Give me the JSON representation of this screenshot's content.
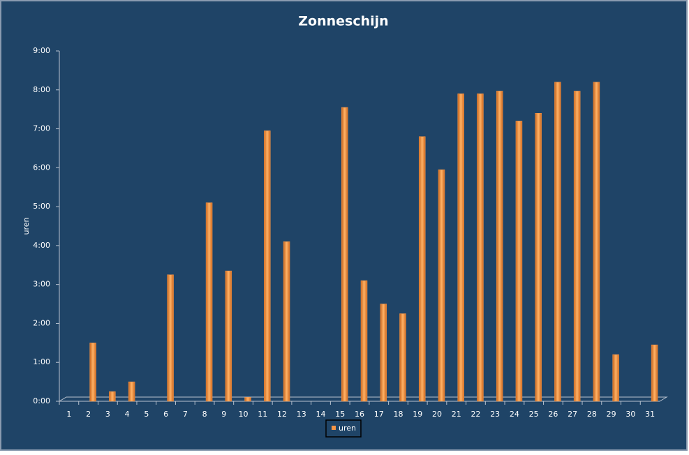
{
  "chart_data": {
    "type": "bar",
    "title": "Zonneschijn",
    "ylabel": "uren",
    "categories": [
      "1",
      "2",
      "3",
      "4",
      "5",
      "6",
      "7",
      "8",
      "9",
      "10",
      "11",
      "12",
      "13",
      "14",
      "15",
      "16",
      "17",
      "18",
      "19",
      "20",
      "21",
      "22",
      "23",
      "24",
      "25",
      "26",
      "27",
      "28",
      "29",
      "30",
      "31"
    ],
    "series": [
      {
        "name": "uren",
        "color": "#f79646",
        "values": [
          0,
          1.5,
          0.25,
          0.5,
          0,
          3.25,
          0,
          5.1,
          3.35,
          0.1,
          6.95,
          4.1,
          0,
          0,
          7.55,
          3.1,
          2.5,
          2.25,
          6.8,
          5.95,
          7.9,
          7.9,
          7.97,
          7.2,
          7.4,
          8.2,
          7.97,
          8.2,
          1.2,
          0,
          1.45
        ]
      }
    ],
    "ylim": [
      0,
      9
    ],
    "yticks": [
      {
        "value": 0,
        "label": "0:00"
      },
      {
        "value": 1,
        "label": "1:00"
      },
      {
        "value": 2,
        "label": "2:00"
      },
      {
        "value": 3,
        "label": "3:00"
      },
      {
        "value": 4,
        "label": "4:00"
      },
      {
        "value": 5,
        "label": "5:00"
      },
      {
        "value": 6,
        "label": "6:00"
      },
      {
        "value": 7,
        "label": "7:00"
      },
      {
        "value": 8,
        "label": "8:00"
      },
      {
        "value": 9,
        "label": "9:00"
      }
    ],
    "legend": "bottom"
  }
}
